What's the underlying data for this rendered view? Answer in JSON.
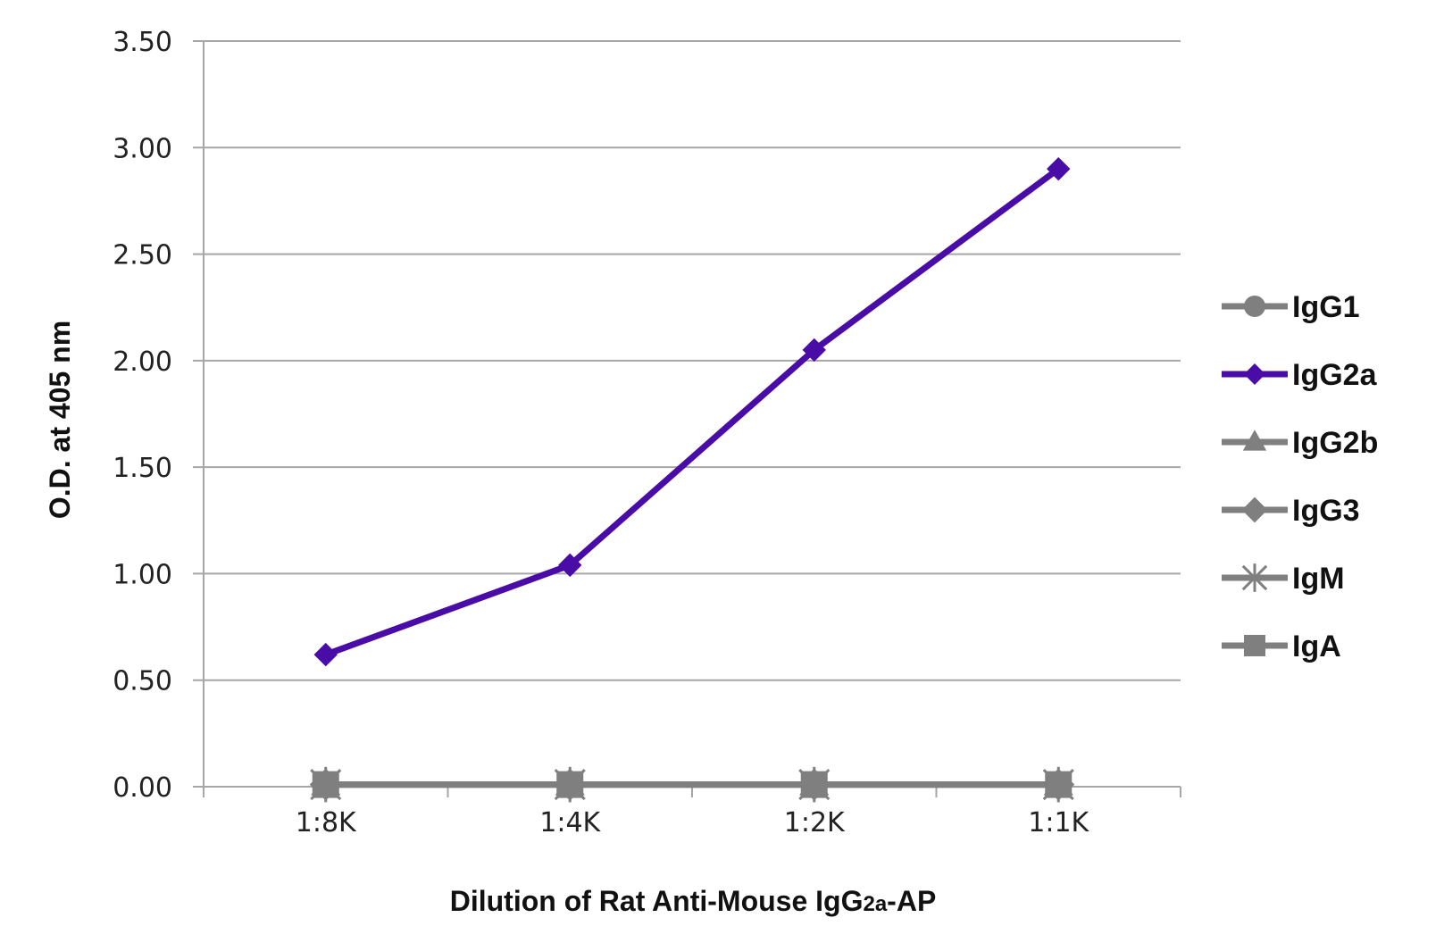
{
  "chart_data": {
    "type": "line",
    "title": "",
    "xlabel_main": "Dilution of Rat Anti-Mouse IgG",
    "xlabel_sub": "2a",
    "xlabel_suffix": "-AP",
    "ylabel": "O.D. at 405 nm",
    "categories": [
      "1:8K",
      "1:4K",
      "1:2K",
      "1:1K"
    ],
    "ylim": [
      0,
      3.5
    ],
    "yticks": [
      "0.00",
      "0.50",
      "1.00",
      "1.50",
      "2.00",
      "2.50",
      "3.00",
      "3.50"
    ],
    "grid": "horizontal",
    "legend_position": "right",
    "series": [
      {
        "name": "IgG1",
        "values": [
          0.01,
          0.01,
          0.01,
          0.01
        ],
        "color": "#7f7f7f",
        "marker": "circle"
      },
      {
        "name": "IgG2a",
        "values": [
          0.62,
          1.04,
          2.05,
          2.9
        ],
        "color": "#4a0ca6",
        "marker": "diamond"
      },
      {
        "name": "IgG2b",
        "values": [
          0.01,
          0.01,
          0.01,
          0.01
        ],
        "color": "#7f7f7f",
        "marker": "triangle"
      },
      {
        "name": "IgG3",
        "values": [
          0.01,
          0.01,
          0.01,
          0.01
        ],
        "color": "#7f7f7f",
        "marker": "diamond"
      },
      {
        "name": "IgM",
        "values": [
          0.01,
          0.01,
          0.01,
          0.01
        ],
        "color": "#7f7f7f",
        "marker": "star"
      },
      {
        "name": "IgA",
        "values": [
          0.01,
          0.01,
          0.01,
          0.01
        ],
        "color": "#7f7f7f",
        "marker": "square"
      }
    ]
  }
}
